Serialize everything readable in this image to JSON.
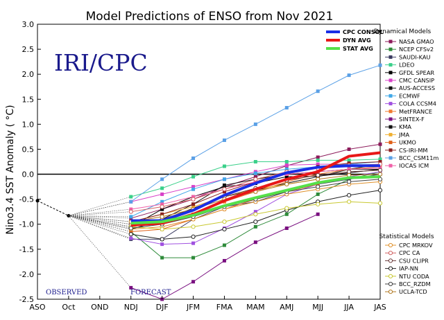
{
  "chart_data": {
    "type": "line",
    "title": "Model Predictions of ENSO from Nov 2021",
    "ylabel": "Nino3.4 SST Anomaly ( °C)",
    "xlabel": "",
    "ylim": [
      -2.5,
      3.0
    ],
    "yticks": [
      "3.0",
      "2.5",
      "2.0",
      "1.5",
      "1.0",
      "0.5",
      "0.0",
      "-0.5",
      "-1.0",
      "-1.5",
      "-2.0",
      "-2.5"
    ],
    "categories": [
      "ASO",
      "Oct",
      "OND",
      "NDJ",
      "DJF",
      "JFM",
      "FMA",
      "MAM",
      "AMJ",
      "MJJ",
      "JJA",
      "JAS"
    ],
    "brand": "IRI/CPC",
    "observed_label": "OBSERVED",
    "forecast_label": "FORECAST",
    "observed": [
      -0.53,
      -0.83
    ],
    "dynamical_header": "Dynamical Models",
    "statistical_header": "Statistical Models",
    "averages": [
      {
        "name": "CPC CONSOL",
        "color": "#1a2ee6",
        "values": [
          null,
          null,
          null,
          -0.93,
          -0.93,
          -0.72,
          -0.42,
          -0.18,
          0.03,
          0.14,
          0.17,
          0.17
        ]
      },
      {
        "name": "DYN AVG",
        "color": "#e81818",
        "values": [
          null,
          null,
          null,
          -1.02,
          -0.98,
          -0.8,
          -0.53,
          -0.3,
          -0.1,
          0.05,
          0.36,
          0.43
        ]
      },
      {
        "name": "STAT AVG",
        "color": "#55e04a",
        "values": [
          null,
          null,
          null,
          -0.98,
          -0.95,
          -0.82,
          -0.63,
          -0.47,
          -0.32,
          -0.17,
          -0.07,
          -0.05
        ]
      }
    ],
    "series": [
      {
        "name": "NASA GMAO",
        "group": "dynamical",
        "marker": "square",
        "color": "#8c1a5a",
        "values": [
          null,
          null,
          null,
          -0.88,
          -0.7,
          -0.5,
          -0.25,
          -0.05,
          0.17,
          0.34,
          0.5,
          0.6
        ]
      },
      {
        "name": "NCEP CFSv2",
        "group": "dynamical",
        "marker": "square",
        "color": "#2e8b3a",
        "values": [
          null,
          null,
          null,
          -1.15,
          -1.67,
          -1.67,
          -1.42,
          -1.05,
          -0.8,
          -0.4,
          -0.1,
          0.05
        ]
      },
      {
        "name": "SAUDI-KAU",
        "group": "dynamical",
        "marker": "square",
        "color": "#3b3b60",
        "values": [
          null,
          null,
          null,
          -1.3,
          -1.3,
          -0.9,
          -0.65,
          -0.55,
          -0.35,
          -0.2,
          -0.1,
          0.0
        ]
      },
      {
        "name": "LDEO",
        "group": "dynamical",
        "marker": "square",
        "color": "#3ad08a",
        "values": [
          null,
          null,
          null,
          -0.45,
          -0.28,
          -0.05,
          0.16,
          0.25,
          0.25,
          0.28,
          0.28,
          0.3
        ]
      },
      {
        "name": "GFDL SPEAR",
        "group": "dynamical",
        "marker": "square",
        "color": "#000000",
        "values": [
          null,
          null,
          null,
          -1.05,
          -0.7,
          -0.45,
          -0.25,
          -0.18,
          -0.05,
          -0.04,
          0.03,
          0.1
        ]
      },
      {
        "name": "CMC CANSIP",
        "group": "dynamical",
        "marker": "square",
        "color": "#d840c8",
        "values": [
          null,
          null,
          null,
          -0.55,
          -0.4,
          -0.25,
          -0.1,
          0.05,
          0.18,
          0.2,
          0.2,
          0.25
        ]
      },
      {
        "name": "AUS-ACCESS",
        "group": "dynamical",
        "marker": "square",
        "color": "#101010",
        "values": [
          null,
          null,
          null,
          -1.1,
          -0.92,
          -0.68,
          -0.45,
          -0.32,
          -0.18,
          -0.05,
          0.1,
          0.2
        ]
      },
      {
        "name": "ECMWF",
        "group": "dynamical",
        "marker": "square",
        "color": "#40a8e8",
        "values": [
          null,
          null,
          null,
          -0.85,
          -0.55,
          -0.3,
          -0.1,
          0.02,
          0.1,
          0.15,
          0.2,
          0.25
        ]
      },
      {
        "name": "COLA CCSM4",
        "group": "dynamical",
        "marker": "square",
        "color": "#a050e0",
        "values": [
          null,
          null,
          null,
          -1.28,
          -1.4,
          -1.38,
          -1.08,
          -0.75,
          -0.4,
          -0.2,
          -0.05,
          0.05
        ]
      },
      {
        "name": "MetFRANCE",
        "group": "dynamical",
        "marker": "square",
        "color": "#f07a30",
        "values": [
          null,
          null,
          null,
          -1.05,
          -0.95,
          -0.8,
          -0.55,
          -0.35,
          -0.15,
          0.0,
          0.1,
          0.15
        ]
      },
      {
        "name": "SINTEX-F",
        "group": "dynamical",
        "marker": "square",
        "color": "#7a1080",
        "values": [
          null,
          null,
          null,
          -2.27,
          -2.5,
          -2.15,
          -1.73,
          -1.36,
          -1.08,
          -0.8,
          null,
          null
        ]
      },
      {
        "name": "KMA",
        "group": "dynamical",
        "marker": "square",
        "color": "#111111",
        "values": [
          null,
          null,
          null,
          -1.0,
          -0.9,
          -0.6,
          -0.22,
          -0.1,
          0.0,
          0.05,
          0.1,
          0.1
        ]
      },
      {
        "name": "JMA",
        "group": "dynamical",
        "marker": "square",
        "color": "#f0b030",
        "values": [
          null,
          null,
          null,
          -0.95,
          -0.8,
          -0.65,
          -0.45,
          -0.3,
          -0.2,
          -0.1,
          null,
          null
        ]
      },
      {
        "name": "UKMO",
        "group": "dynamical",
        "marker": "square",
        "color": "#e06018",
        "values": [
          null,
          null,
          null,
          -1.15,
          -1.1,
          -0.9,
          -0.7,
          -0.5,
          -0.35,
          -0.2,
          null,
          null
        ]
      },
      {
        "name": "CS-IRI-MM",
        "group": "dynamical",
        "marker": "square",
        "color": "#8a2020",
        "values": [
          null,
          null,
          null,
          -0.95,
          -0.8,
          -0.6,
          -0.35,
          -0.15,
          0.05,
          0.15,
          0.22,
          0.25
        ]
      },
      {
        "name": "BCC_CSM11m",
        "group": "dynamical",
        "marker": "square",
        "color": "#5aa0e6",
        "values": [
          null,
          null,
          null,
          -0.55,
          -0.1,
          0.32,
          0.68,
          1.0,
          1.33,
          1.66,
          1.98,
          2.18
        ]
      },
      {
        "name": "IOCAS ICM",
        "group": "dynamical",
        "marker": "square",
        "color": "#f060a8",
        "values": [
          null,
          null,
          null,
          -0.7,
          -0.6,
          -0.45,
          -0.3,
          -0.15,
          0.0,
          0.05,
          0.1,
          0.12
        ]
      },
      {
        "name": "CPC MRKOV",
        "group": "statistical",
        "marker": "circle",
        "color": "#e0902a",
        "values": [
          null,
          null,
          null,
          -1.1,
          -1.05,
          -0.9,
          -0.7,
          -0.55,
          -0.4,
          -0.3,
          -0.2,
          -0.15
        ]
      },
      {
        "name": "CPC CA",
        "group": "statistical",
        "marker": "circle",
        "color": "#d06060",
        "values": [
          null,
          null,
          null,
          -0.75,
          -0.65,
          -0.5,
          -0.3,
          -0.1,
          0.05,
          0.12,
          0.18,
          0.2
        ]
      },
      {
        "name": "CSU CLIPR",
        "group": "statistical",
        "marker": "circle",
        "color": "#6a3a3a",
        "values": [
          null,
          null,
          null,
          -1.0,
          -0.9,
          -0.7,
          -0.45,
          -0.28,
          -0.12,
          -0.02,
          0.05,
          0.08
        ]
      },
      {
        "name": "IAP-NN",
        "group": "statistical",
        "marker": "circle",
        "color": "#202020",
        "values": [
          null,
          null,
          null,
          -1.2,
          -1.3,
          -1.25,
          -1.1,
          -0.95,
          -0.72,
          -0.55,
          -0.42,
          -0.32
        ]
      },
      {
        "name": "NTU CODA",
        "group": "statistical",
        "marker": "circle",
        "color": "#c8c830",
        "values": [
          null,
          null,
          null,
          -1.05,
          -1.1,
          -1.05,
          -0.95,
          -0.8,
          -0.68,
          -0.6,
          -0.55,
          -0.58
        ]
      },
      {
        "name": "BCC_RZDM",
        "group": "statistical",
        "marker": "circle",
        "color": "#404040",
        "values": [
          null,
          null,
          null,
          -1.08,
          -1.0,
          -0.85,
          -0.65,
          -0.5,
          -0.35,
          -0.25,
          -0.15,
          -0.1
        ]
      },
      {
        "name": "UCLA-TCD",
        "group": "statistical",
        "marker": "circle",
        "color": "#b07820",
        "values": [
          null,
          null,
          null,
          -0.95,
          -0.85,
          -0.7,
          -0.5,
          -0.35,
          -0.2,
          -0.1,
          -0.02,
          0.0
        ]
      }
    ]
  }
}
